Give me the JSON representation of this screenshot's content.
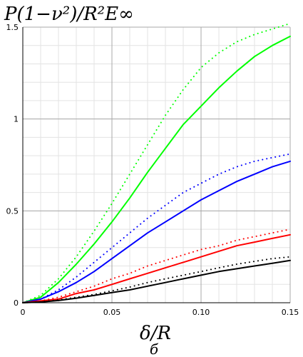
{
  "chart_data": {
    "type": "line",
    "ylabel": "P(1−ν²)/R²E∞",
    "xlabel": "δ/R",
    "caption": "б",
    "xlim": [
      0,
      0.15
    ],
    "ylim": [
      0,
      1.5
    ],
    "x_ticks": [
      "0",
      "0.05",
      "0.10",
      "0.15"
    ],
    "y_ticks": [
      "0",
      "0.5",
      "1",
      "1.5"
    ],
    "grid": true,
    "x": [
      0,
      0.01,
      0.02,
      0.03,
      0.04,
      0.05,
      0.06,
      0.07,
      0.08,
      0.09,
      0.1,
      0.11,
      0.12,
      0.13,
      0.14,
      0.15
    ],
    "series": [
      {
        "color": "#00ff00",
        "style": "dotted",
        "values": [
          0,
          0.04,
          0.13,
          0.25,
          0.39,
          0.54,
          0.7,
          0.86,
          1.02,
          1.16,
          1.28,
          1.36,
          1.42,
          1.46,
          1.49,
          1.52
        ]
      },
      {
        "color": "#00ff00",
        "style": "solid",
        "values": [
          0,
          0.03,
          0.11,
          0.21,
          0.32,
          0.44,
          0.57,
          0.71,
          0.84,
          0.97,
          1.07,
          1.17,
          1.26,
          1.34,
          1.4,
          1.45
        ]
      },
      {
        "color": "#0000ff",
        "style": "dotted",
        "values": [
          0,
          0.02,
          0.07,
          0.14,
          0.22,
          0.3,
          0.38,
          0.46,
          0.53,
          0.6,
          0.65,
          0.7,
          0.74,
          0.77,
          0.79,
          0.81
        ]
      },
      {
        "color": "#0000ff",
        "style": "solid",
        "values": [
          0,
          0.02,
          0.06,
          0.11,
          0.17,
          0.24,
          0.31,
          0.38,
          0.44,
          0.5,
          0.56,
          0.61,
          0.66,
          0.7,
          0.74,
          0.77
        ]
      },
      {
        "color": "#ff0000",
        "style": "dotted",
        "values": [
          0,
          0.01,
          0.03,
          0.06,
          0.09,
          0.13,
          0.16,
          0.2,
          0.23,
          0.26,
          0.29,
          0.31,
          0.34,
          0.36,
          0.38,
          0.4
        ]
      },
      {
        "color": "#ff0000",
        "style": "solid",
        "values": [
          0,
          0.01,
          0.02,
          0.05,
          0.07,
          0.1,
          0.13,
          0.16,
          0.19,
          0.22,
          0.25,
          0.28,
          0.31,
          0.33,
          0.35,
          0.37
        ]
      },
      {
        "color": "#000000",
        "style": "dotted",
        "values": [
          0,
          0.005,
          0.015,
          0.03,
          0.045,
          0.065,
          0.085,
          0.11,
          0.13,
          0.15,
          0.17,
          0.19,
          0.21,
          0.225,
          0.24,
          0.25
        ]
      },
      {
        "color": "#000000",
        "style": "solid",
        "values": [
          0,
          0.004,
          0.012,
          0.025,
          0.04,
          0.055,
          0.07,
          0.09,
          0.11,
          0.13,
          0.15,
          0.17,
          0.185,
          0.2,
          0.215,
          0.23
        ]
      }
    ]
  }
}
